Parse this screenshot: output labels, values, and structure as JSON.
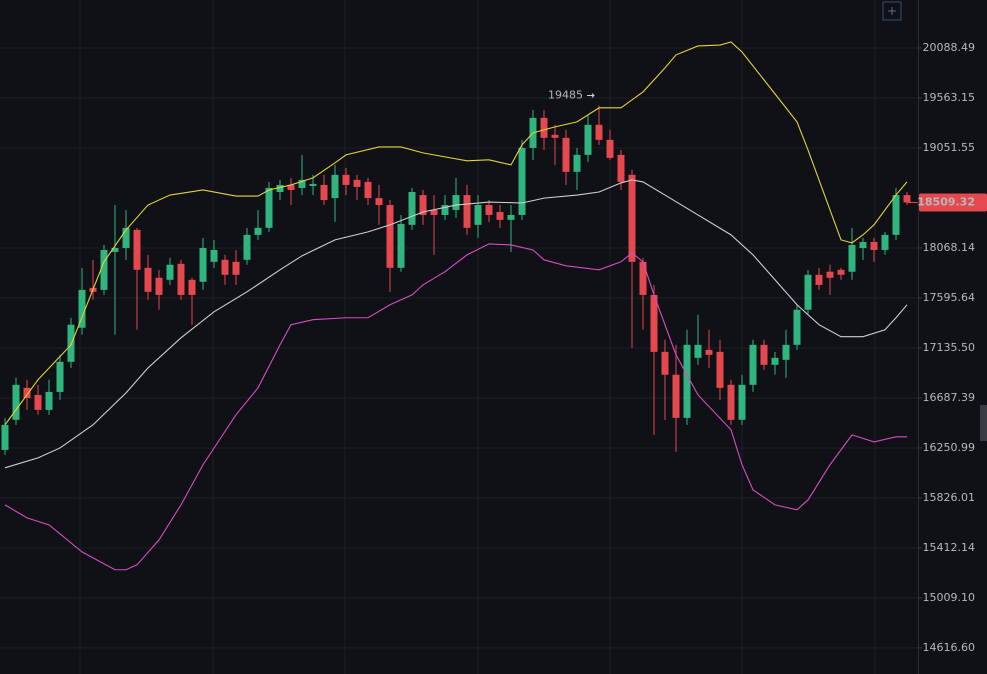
{
  "chart_data": {
    "type": "candlestick",
    "log_scale": true,
    "grid": true,
    "ylim": [
      14416,
      20606
    ],
    "yticks": [
      20088.49,
      19563.15,
      19051.55,
      18068.14,
      17595.64,
      {
        "value": 17135.5,
        "label": "17135.50"
      },
      16687.39,
      16250.99,
      15826.01,
      15412.14,
      {
        "value": 15009.1,
        "label": "15009.10"
      },
      {
        "value": 14616.6,
        "label": "14616.60"
      }
    ],
    "up_color": "#2fb57d",
    "down_color": "#e5484d",
    "open": [
      16234,
      16495,
      16777,
      16714,
      16582,
      16741,
      17010,
      17320,
      17690,
      17671,
      18030,
      18068,
      18242,
      17879,
      17785,
      17766,
      17917,
      17766,
      17747,
      17936,
      17955,
      17936,
      17955,
      18194,
      18262,
      18612,
      18682,
      18652,
      18672,
      18682,
      18552,
      18782,
      18732,
      18712,
      18552,
      18484,
      17879,
      18291,
      18582,
      18436,
      18387,
      18436,
      18582,
      18291,
      18484,
      18416,
      18339,
      18387,
      19052,
      19358,
      19185,
      19154,
      18812,
      18982,
      19287,
      19134,
      18982,
      18782,
      17936,
      17624,
      17100,
      16894,
      16512,
      17046,
      17118,
      17100,
      16804,
      16495,
      16804,
      17164,
      16983,
      17028,
      17164,
      17486,
      17813,
      17842,
      17860,
      17842,
      18068,
      18126,
      18049,
      18194,
      18582
    ],
    "high": [
      16512,
      16867,
      16849,
      16804,
      16849,
      17073,
      17412,
      17879,
      17955,
      18097,
      18484,
      18436,
      18262,
      18002,
      17860,
      17974,
      17955,
      17785,
      18165,
      18146,
      18002,
      18049,
      18262,
      18436,
      18712,
      18732,
      18752,
      18982,
      18782,
      18782,
      18882,
      18852,
      18782,
      18752,
      18682,
      18533,
      18387,
      18652,
      18632,
      18582,
      18582,
      18752,
      18682,
      18582,
      18533,
      18484,
      18484,
      19134,
      19440,
      19440,
      19287,
      19236,
      19052,
      19389,
      19485,
      19236,
      19032,
      18832,
      17974,
      17718,
      17210,
      17164,
      17302,
      17440,
      17302,
      17210,
      16849,
      16894,
      17210,
      17210,
      17100,
      17302,
      17532,
      17860,
      17879,
      17908,
      17879,
      18262,
      18165,
      18165,
      18223,
      18652,
      18612
    ],
    "low": [
      16191,
      16451,
      16582,
      16539,
      16539,
      16670,
      16956,
      17256,
      17578,
      17624,
      17256,
      17955,
      17302,
      17578,
      17486,
      17718,
      17578,
      17348,
      17671,
      17879,
      17718,
      17718,
      17908,
      18146,
      18223,
      18533,
      18484,
      18582,
      18582,
      18484,
      18320,
      18582,
      18533,
      18484,
      18291,
      17653,
      17842,
      18242,
      18291,
      18002,
      18339,
      18359,
      18194,
      18165,
      18320,
      18262,
      18030,
      18339,
      18932,
      19032,
      18882,
      18682,
      18632,
      18912,
      19083,
      18932,
      18632,
      17136,
      17302,
      16364,
      16495,
      16217,
      16451,
      16983,
      16956,
      16670,
      16451,
      16451,
      16741,
      16938,
      16894,
      16867,
      17118,
      17440,
      17671,
      17624,
      17766,
      17766,
      17955,
      17936,
      18002,
      18146,
      18484
    ],
    "close": [
      16451,
      16804,
      16687,
      16582,
      16741,
      17010,
      17348,
      17671,
      17653,
      18049,
      18068,
      18262,
      17860,
      17653,
      17624,
      17908,
      17624,
      17624,
      18068,
      18049,
      17813,
      17813,
      18194,
      18262,
      18652,
      18682,
      18632,
      18732,
      18692,
      18533,
      18782,
      18682,
      18662,
      18552,
      18484,
      17879,
      18300,
      18612,
      18387,
      18387,
      18484,
      18582,
      18262,
      18484,
      18387,
      18339,
      18387,
      19052,
      19358,
      19154,
      19154,
      18812,
      18982,
      19287,
      19134,
      18952,
      18712,
      17936,
      17624,
      17100,
      16894,
      16512,
      17164,
      17164,
      17073,
      16777,
      16495,
      16804,
      17164,
      16983,
      17046,
      17164,
      17486,
      17813,
      17718,
      17785,
      17813,
      18097,
      18126,
      18049,
      18194,
      18582,
      18509.32
    ],
    "overlays": [
      {
        "color": "#e3d23a",
        "x": [
          0,
          3,
          6,
          9,
          11,
          13,
          15,
          18,
          21,
          23,
          24,
          26,
          28,
          30,
          31,
          34,
          36,
          38,
          40,
          42,
          44,
          46,
          47,
          48,
          50,
          52,
          54,
          56,
          58,
          60,
          61,
          63,
          65,
          66,
          67,
          69,
          71,
          72,
          73,
          74,
          75,
          76,
          77,
          78,
          79,
          80,
          81,
          82
        ],
        "values": [
          16451,
          16849,
          17164,
          17936,
          18242,
          18484,
          18582,
          18632,
          18572,
          18572,
          18632,
          18682,
          18752,
          18902,
          18982,
          19062,
          19062,
          19002,
          18962,
          18922,
          18932,
          18882,
          19083,
          19205,
          19266,
          19317,
          19461,
          19461,
          19626,
          19878,
          20015,
          20110,
          20120,
          20153,
          20046,
          19752,
          19461,
          19317,
          19032,
          18732,
          18436,
          18146,
          18117,
          18194,
          18291,
          18436,
          18582,
          18712
        ]
      },
      {
        "color": "#cfcfcf",
        "x": [
          0,
          3,
          5,
          8,
          11,
          13,
          16,
          19,
          22,
          25,
          27,
          30,
          33,
          35,
          38,
          41,
          44,
          47,
          49,
          52,
          54,
          56,
          57,
          58,
          60,
          63,
          66,
          68,
          70,
          72,
          74,
          76,
          78,
          80,
          81,
          82
        ],
        "values": [
          16081,
          16166,
          16251,
          16451,
          16732,
          16956,
          17228,
          17467,
          17653,
          17860,
          17993,
          18146,
          18223,
          18291,
          18416,
          18484,
          18513,
          18504,
          18552,
          18582,
          18612,
          18702,
          18732,
          18712,
          18582,
          18387,
          18194,
          18002,
          17766,
          17532,
          17348,
          17238,
          17238,
          17302,
          17412,
          17532
        ]
      },
      {
        "color": "#d94bc4",
        "x": [
          0,
          2,
          4,
          7,
          10,
          11,
          12,
          14,
          16,
          18,
          21,
          23,
          25,
          26,
          28,
          31,
          33,
          35,
          37,
          38,
          40,
          42,
          44,
          46,
          48,
          49,
          51,
          54,
          56,
          57,
          58,
          59,
          61,
          63,
          66,
          67,
          68,
          70,
          72,
          73,
          75,
          77,
          79,
          81,
          82
        ],
        "values": [
          15768,
          15660,
          15602,
          15380,
          15235,
          15235,
          15275,
          15478,
          15768,
          16107,
          16539,
          16777,
          17164,
          17348,
          17394,
          17412,
          17412,
          17532,
          17624,
          17718,
          17842,
          18002,
          18107,
          18097,
          18049,
          17955,
          17898,
          17860,
          17936,
          18021,
          17936,
          17624,
          17073,
          16714,
          16408,
          16107,
          15894,
          15768,
          15727,
          15809,
          16107,
          16364,
          16303,
          16347,
          16347
        ]
      }
    ]
  }
}
